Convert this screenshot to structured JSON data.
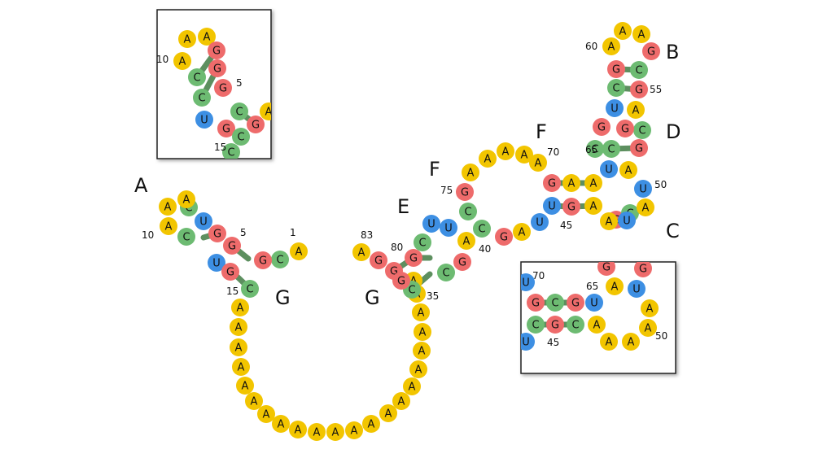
{
  "figure": {
    "type": "rna-secondary-structure"
  },
  "colors": {
    "A": "#F2C500",
    "G": "#EE6B6B",
    "C": "#6DBB72",
    "U": "#3D8FE3",
    "bond": "#5d8f5f"
  },
  "main": {
    "five_prime": {
      "nts": [
        "A",
        "C",
        "G",
        "G",
        "G",
        "U",
        "C",
        "A",
        "A",
        "A",
        "C",
        "U",
        "G",
        "C"
      ],
      "nums": {
        "0": "1",
        "4": "5",
        "9": "10",
        "14": "15"
      }
    },
    "poly_a_linker": [
      "A",
      "A",
      "A",
      "A",
      "A",
      "A",
      "A",
      "A",
      "A",
      "A",
      "A",
      "A",
      "A",
      "A",
      "A",
      "A",
      "A",
      "A",
      "A",
      "A",
      "A",
      "A"
    ],
    "three_prime_stem": [
      "C",
      "A",
      "G",
      "G",
      "G",
      "C",
      "U",
      "U",
      "C",
      "G",
      "G",
      "A"
    ],
    "three_prime_nums": {
      "label_35": "35",
      "label_40": "40",
      "label_80": "80",
      "label_83": "83"
    },
    "upper_loop": [
      "G",
      "C",
      "A",
      "A",
      "A",
      "A",
      "A",
      "U",
      "A",
      "G",
      "C",
      "U",
      "G",
      "G",
      "A",
      "A",
      "A",
      "G",
      "C"
    ],
    "upper_nums": {
      "n70": "70",
      "n75": "75",
      "n45": "45"
    },
    "hairpin": [
      "C",
      "U",
      "G",
      "C",
      "G",
      "C",
      "A",
      "A",
      "A",
      "A",
      "G",
      "G",
      "C",
      "G",
      "U",
      "G",
      "C",
      "A",
      "U",
      "A",
      "U",
      "A"
    ],
    "hairpin_nums": {
      "n50": "50",
      "n55": "55",
      "n60": "60",
      "n65": "65"
    }
  },
  "region_labels": {
    "A": "A",
    "B": "B",
    "C": "C",
    "D": "D",
    "E": "E",
    "F_upper": "F",
    "F_left": "F",
    "G_left": "G",
    "G_right": "G"
  },
  "inset_left": {
    "nts": [
      "A",
      "A",
      "A",
      "G",
      "G",
      "C",
      "G",
      "C",
      "U",
      "G",
      "G",
      "C",
      "C",
      "C",
      "A"
    ],
    "nums": {
      "n10": "10",
      "n5": "5",
      "n15": "15"
    }
  },
  "inset_right": {
    "nts": [
      "U",
      "G",
      "C",
      "U",
      "G",
      "C",
      "G",
      "U",
      "C",
      "A",
      "G",
      "G",
      "A",
      "A",
      "A",
      "A",
      "A",
      "U"
    ],
    "nums": {
      "n70": "70",
      "n65": "65",
      "n45": "45",
      "n50": "50"
    }
  }
}
